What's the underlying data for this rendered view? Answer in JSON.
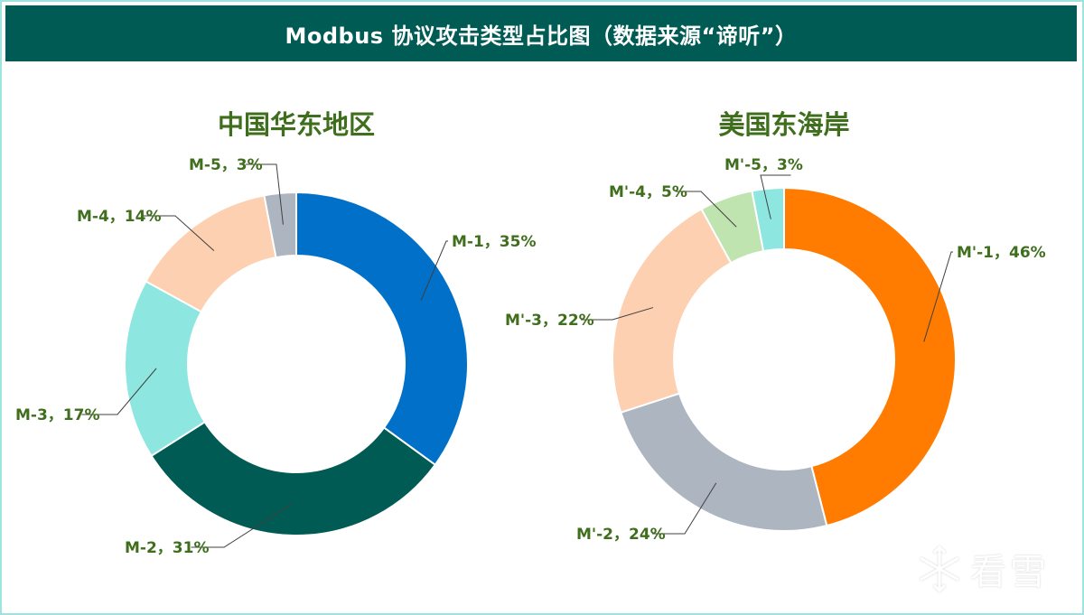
{
  "header": {
    "title": "Modbus 协议攻击类型占比图（数据来源“谛听”）"
  },
  "watermark": {
    "text": "看雪",
    "icon": "snowflake-icon"
  },
  "chart_data": [
    {
      "type": "pie",
      "subtype": "donut",
      "title": "中国华东地区",
      "categories": [
        "M-1",
        "M-2",
        "M-3",
        "M-4",
        "M-5"
      ],
      "values": [
        35,
        31,
        17,
        14,
        3
      ],
      "labels": [
        "M-1，35%",
        "M-2，31%",
        "M-3，17%",
        "M-4，14%",
        "M-5，3%"
      ],
      "colors": [
        "#0070c8",
        "#005b54",
        "#8de6e0",
        "#fcd0b0",
        "#adb5c1"
      ],
      "start": "top",
      "direction": "clockwise",
      "unit": "%"
    },
    {
      "type": "pie",
      "subtype": "donut",
      "title": "美国东海岸",
      "categories": [
        "M'-1",
        "M'-2",
        "M'-3",
        "M'-4",
        "M'-5"
      ],
      "values": [
        46,
        24,
        22,
        5,
        3
      ],
      "labels": [
        "M'-1，46%",
        "M'-2，24%",
        "M'-3，22%",
        "M'-4，5%",
        "M'-5，3%"
      ],
      "colors": [
        "#ff7c00",
        "#adb5c1",
        "#fcd0b0",
        "#c0e4b0",
        "#8de6e0"
      ],
      "start": "top",
      "direction": "clockwise",
      "unit": "%"
    }
  ]
}
